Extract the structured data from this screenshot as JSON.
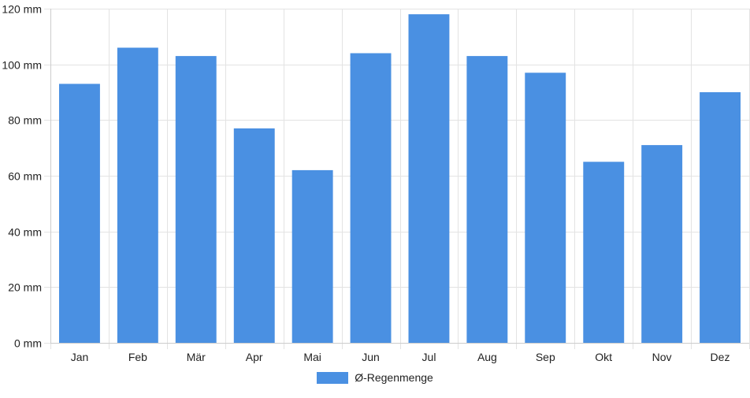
{
  "chart_data": {
    "type": "bar",
    "categories": [
      "Jan",
      "Feb",
      "Mär",
      "Apr",
      "Mai",
      "Jun",
      "Jul",
      "Aug",
      "Sep",
      "Okt",
      "Nov",
      "Dez"
    ],
    "series": [
      {
        "name": "Ø-Regenmenge",
        "values": [
          93,
          106,
          103,
          77,
          62,
          104,
          118,
          103,
          97,
          65,
          71,
          90
        ]
      }
    ],
    "y_ticks": [
      "0 mm",
      "20 mm",
      "40 mm",
      "60 mm",
      "80 mm",
      "100 mm",
      "120 mm"
    ],
    "unit": "mm",
    "ylim": [
      0,
      120
    ],
    "grid": true,
    "legend_position": "bottom-center",
    "colors": {
      "bar": "#4a90e2",
      "grid": "#e3e3e3",
      "axis": "#cccccc"
    }
  }
}
